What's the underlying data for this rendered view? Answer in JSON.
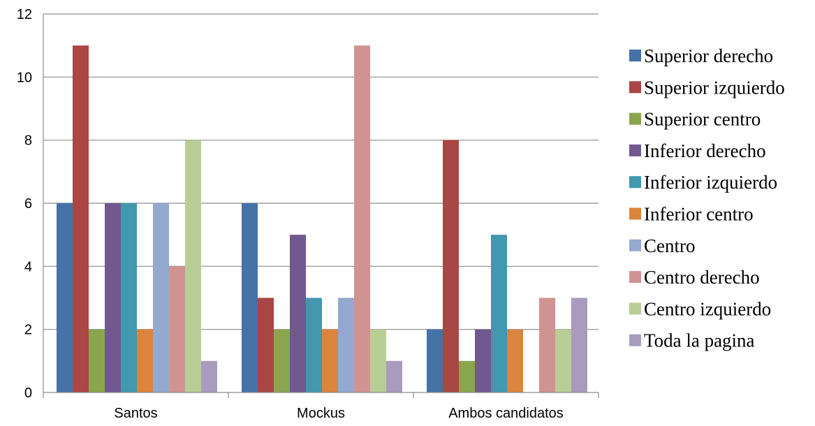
{
  "chart_data": {
    "type": "bar",
    "categories": [
      "Santos",
      "Mockus",
      "Ambos candidatos"
    ],
    "ylim": [
      0,
      12
    ],
    "yticks": [
      0,
      2,
      4,
      6,
      8,
      10,
      12
    ],
    "grid": true,
    "legend_position": "right",
    "series": [
      {
        "name": "Superior derecho",
        "color": "#4572A7",
        "values": [
          6,
          6,
          2
        ]
      },
      {
        "name": "Superior izquierdo",
        "color": "#AA4643",
        "values": [
          11,
          3,
          8
        ]
      },
      {
        "name": "Superior centro",
        "color": "#89A54E",
        "values": [
          2,
          2,
          1
        ]
      },
      {
        "name": "Inferior derecho",
        "color": "#71588F",
        "values": [
          6,
          5,
          2
        ]
      },
      {
        "name": "Inferior izquierdo",
        "color": "#4198AF",
        "values": [
          6,
          3,
          5
        ]
      },
      {
        "name": "Inferior centro",
        "color": "#DB843D",
        "values": [
          2,
          2,
          2
        ]
      },
      {
        "name": "Centro",
        "color": "#93A9CF",
        "values": [
          6,
          3,
          0
        ]
      },
      {
        "name": "Centro derecho",
        "color": "#D19392",
        "values": [
          4,
          11,
          3
        ]
      },
      {
        "name": "Centro izquierdo",
        "color": "#B9CD96",
        "values": [
          8,
          2,
          2
        ]
      },
      {
        "name": "Toda la pagina",
        "color": "#A99BBD",
        "values": [
          1,
          1,
          3
        ]
      }
    ]
  }
}
